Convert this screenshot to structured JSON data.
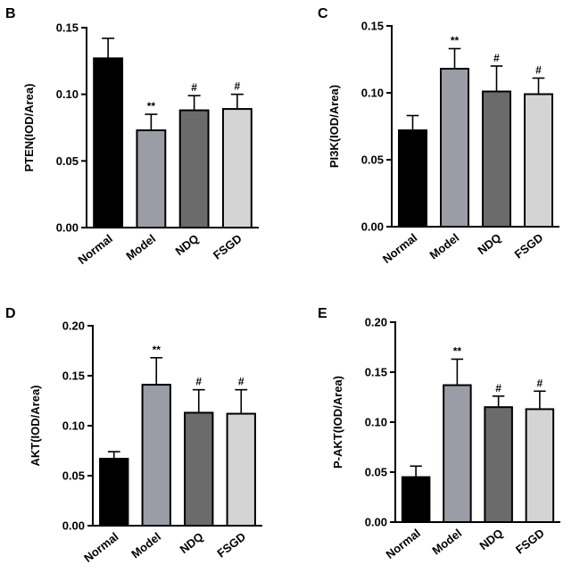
{
  "chart_data": [
    {
      "panel": "B",
      "type": "bar",
      "ylabel": "PTEN(IOD/Area)",
      "ylim": [
        0,
        0.15
      ],
      "yticks": [
        "0.00",
        "0.05",
        "0.10",
        "0.15"
      ],
      "categories": [
        "Normal",
        "Model",
        "NDQ",
        "FSGD"
      ],
      "values": [
        0.127,
        0.073,
        0.088,
        0.089
      ],
      "errors": [
        0.015,
        0.012,
        0.011,
        0.011
      ],
      "significance": [
        "",
        "**",
        "#",
        "#"
      ],
      "colors": [
        "#000000",
        "#9a9ca6",
        "#6b6b6b",
        "#d4d4d4"
      ]
    },
    {
      "panel": "C",
      "type": "bar",
      "ylabel": "PI3K(IOD/Area)",
      "ylim": [
        0,
        0.15
      ],
      "yticks": [
        "0.00",
        "0.05",
        "0.10",
        "0.15"
      ],
      "categories": [
        "Normal",
        "Model",
        "NDQ",
        "FSGD"
      ],
      "values": [
        0.072,
        0.118,
        0.101,
        0.099
      ],
      "errors": [
        0.011,
        0.015,
        0.019,
        0.012
      ],
      "significance": [
        "",
        "**",
        "#",
        "#"
      ],
      "colors": [
        "#000000",
        "#9a9ca6",
        "#6b6b6b",
        "#d4d4d4"
      ]
    },
    {
      "panel": "D",
      "type": "bar",
      "ylabel": "AKT(IOD/Area)",
      "ylim": [
        0,
        0.2
      ],
      "yticks": [
        "0.00",
        "0.05",
        "0.10",
        "0.15",
        "0.20"
      ],
      "categories": [
        "Normal",
        "Model",
        "NDQ",
        "FSGD"
      ],
      "values": [
        0.067,
        0.141,
        0.113,
        0.112
      ],
      "errors": [
        0.007,
        0.027,
        0.023,
        0.024
      ],
      "significance": [
        "",
        "**",
        "#",
        "#"
      ],
      "colors": [
        "#000000",
        "#9a9ca6",
        "#6b6b6b",
        "#d4d4d4"
      ]
    },
    {
      "panel": "E",
      "type": "bar",
      "ylabel": "P-AKT(IOD/Area)",
      "ylim": [
        0,
        0.2
      ],
      "yticks": [
        "0.00",
        "0.05",
        "0.10",
        "0.15",
        "0.20"
      ],
      "categories": [
        "Normal",
        "Model",
        "NDQ",
        "FSGD"
      ],
      "values": [
        0.045,
        0.137,
        0.115,
        0.113
      ],
      "errors": [
        0.011,
        0.026,
        0.011,
        0.018
      ],
      "significance": [
        "",
        "**",
        "#",
        "#"
      ],
      "colors": [
        "#000000",
        "#9a9ca6",
        "#6b6b6b",
        "#d4d4d4"
      ]
    }
  ]
}
